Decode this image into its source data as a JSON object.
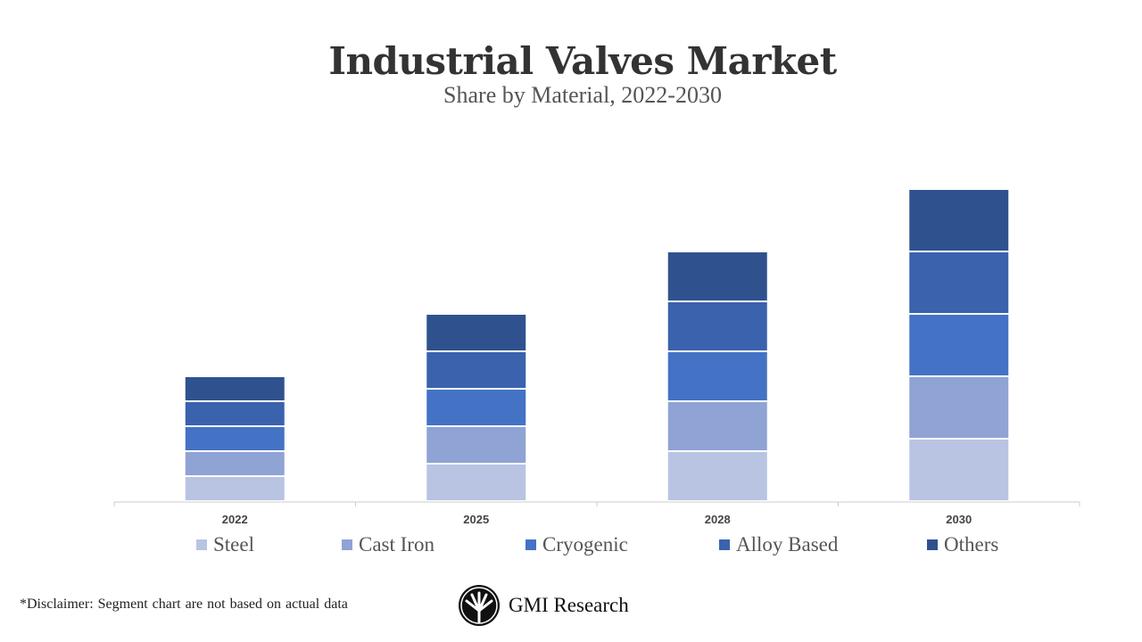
{
  "chart_data": {
    "type": "bar",
    "stacked": true,
    "title": "Industrial Valves Market",
    "subtitle": "Share by Material, 2022-2030",
    "categories": [
      "2022",
      "2025",
      "2028",
      "2030"
    ],
    "series": [
      {
        "name": "Steel",
        "color": "#b8c4e2",
        "values": [
          2,
          3,
          4,
          5
        ]
      },
      {
        "name": "Cast Iron",
        "color": "#8fa3d4",
        "values": [
          2,
          3,
          4,
          5
        ]
      },
      {
        "name": "Cryogenic",
        "color": "#4472c4",
        "values": [
          2,
          3,
          4,
          5
        ]
      },
      {
        "name": "Alloy Based",
        "color": "#3a62ad",
        "values": [
          2,
          3,
          4,
          5
        ]
      },
      {
        "name": "Others",
        "color": "#2f528f",
        "values": [
          2,
          3,
          4,
          5
        ]
      }
    ],
    "xlabel": "",
    "ylabel": "",
    "grid": false,
    "legend": "bottom"
  },
  "disclaimer": "*Disclaimer:   Segment chart are not based on actual data",
  "logo": {
    "text": "GMI Research"
  }
}
